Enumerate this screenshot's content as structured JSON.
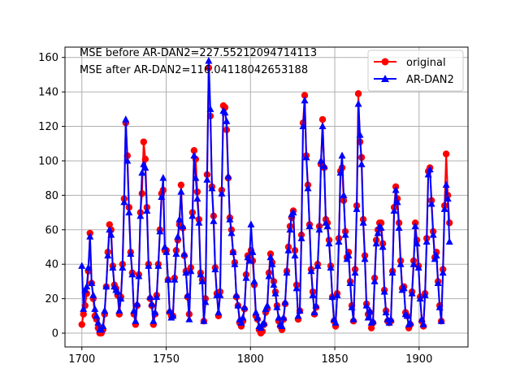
{
  "chart_data": {
    "type": "line",
    "x_start": 1700,
    "x_end": 1918,
    "xlim": [
      1690,
      1929
    ],
    "ylim": [
      -8,
      166
    ],
    "xticks": [
      1700,
      1750,
      1800,
      1850,
      1900
    ],
    "yticks": [
      0,
      20,
      40,
      60,
      80,
      100,
      120,
      140,
      160
    ],
    "grid": true,
    "legend_position": "top-right",
    "annotations": [
      "MSE before AR-DAN2=227.55212094714113",
      "MSE after AR-DAN2=116.04118042653188"
    ],
    "series": [
      {
        "name": "original",
        "color": "#ff0000",
        "marker": "circle",
        "values": [
          5,
          11,
          16,
          23,
          36,
          58,
          29,
          20,
          10,
          8,
          3,
          0,
          0,
          2,
          11,
          27,
          47,
          63,
          60,
          39,
          28,
          26,
          22,
          11,
          21,
          40,
          78,
          122,
          103,
          73,
          47,
          35,
          11,
          5,
          16,
          34,
          70,
          81,
          111,
          101,
          73,
          40,
          20,
          16,
          5,
          11,
          22,
          40,
          60,
          81,
          83,
          48,
          48,
          31,
          12,
          10,
          10,
          32,
          48,
          54,
          63,
          86,
          61,
          45,
          36,
          21,
          11,
          38,
          70,
          106,
          101,
          82,
          66,
          35,
          31,
          7,
          20,
          92,
          154,
          126,
          85,
          68,
          38,
          23,
          10,
          24,
          83,
          132,
          131,
          118,
          90,
          67,
          60,
          47,
          41,
          21,
          16,
          6,
          4,
          7,
          14,
          34,
          45,
          43,
          48,
          42,
          28,
          10,
          8,
          2,
          0,
          1,
          5,
          12,
          14,
          35,
          46,
          41,
          30,
          24,
          16,
          7,
          4,
          2,
          8,
          17,
          36,
          50,
          62,
          67,
          71,
          48,
          28,
          8,
          13,
          57,
          122,
          138,
          103,
          86,
          63,
          37,
          24,
          11,
          15,
          40,
          62,
          98,
          124,
          96,
          66,
          64,
          54,
          39,
          21,
          7,
          4,
          23,
          55,
          94,
          96,
          77,
          59,
          44,
          47,
          30,
          16,
          7,
          37,
          74,
          139,
          111,
          102,
          66,
          45,
          17,
          11,
          12,
          3,
          6,
          32,
          54,
          60,
          64,
          64,
          52,
          25,
          13,
          7,
          6,
          7,
          36,
          73,
          85,
          78,
          64,
          42,
          26,
          27,
          12,
          10,
          3,
          5,
          24,
          42,
          64,
          54,
          39,
          21,
          7,
          4,
          23,
          55,
          94,
          96,
          77,
          59,
          44,
          47,
          30,
          16,
          7,
          37,
          74,
          104,
          80,
          64
        ]
      },
      {
        "name": "AR-DAN2",
        "color": "#0000ff",
        "marker": "triangle",
        "values": [
          39,
          14,
          25,
          27,
          38,
          56,
          29,
          22,
          14,
          10,
          6,
          2,
          2,
          4,
          13,
          27,
          45,
          60,
          57,
          38,
          27,
          25,
          24,
          13,
          20,
          38,
          76,
          124,
          100,
          70,
          46,
          34,
          13,
          7,
          17,
          33,
          68,
          93,
          98,
          96,
          71,
          39,
          21,
          17,
          7,
          12,
          21,
          39,
          59,
          79,
          90,
          50,
          47,
          31,
          13,
          9,
          10,
          31,
          46,
          56,
          66,
          82,
          62,
          46,
          35,
          22,
          8,
          36,
          68,
          103,
          90,
          78,
          64,
          34,
          30,
          7,
          18,
          89,
          158,
          130,
          84,
          65,
          37,
          22,
          12,
          22,
          81,
          129,
          128,
          123,
          91,
          66,
          58,
          47,
          40,
          22,
          16,
          8,
          6,
          9,
          15,
          32,
          44,
          42,
          63,
          47,
          30,
          12,
          9,
          4,
          3,
          5,
          6,
          14,
          16,
          33,
          44,
          40,
          28,
          23,
          15,
          9,
          5,
          4,
          9,
          18,
          35,
          48,
          60,
          69,
          70,
          45,
          26,
          10,
          13,
          55,
          120,
          135,
          102,
          84,
          62,
          36,
          22,
          12,
          16,
          39,
          60,
          100,
          120,
          97,
          64,
          62,
          52,
          38,
          21,
          8,
          6,
          22,
          53,
          93,
          103,
          80,
          57,
          43,
          45,
          29,
          15,
          8,
          35,
          72,
          133,
          115,
          98,
          64,
          43,
          16,
          9,
          13,
          6,
          7,
          30,
          52,
          58,
          62,
          61,
          50,
          24,
          12,
          8,
          6,
          8,
          35,
          71,
          83,
          76,
          61,
          40,
          25,
          26,
          11,
          10,
          5,
          6,
          23,
          40,
          62,
          52,
          38,
          20,
          8,
          5,
          22,
          53,
          92,
          95,
          75,
          57,
          43,
          45,
          29,
          15,
          7,
          35,
          72,
          86,
          78,
          53
        ]
      }
    ]
  }
}
